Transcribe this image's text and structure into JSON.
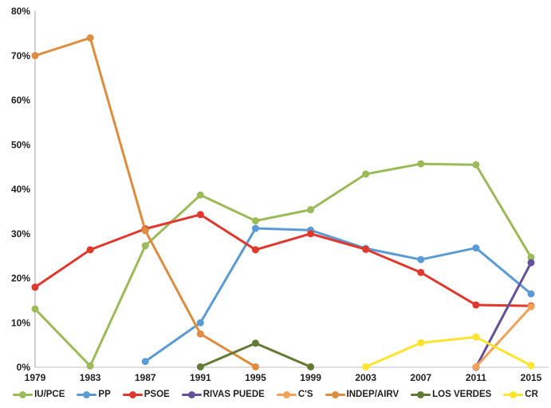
{
  "chart_data": {
    "type": "line",
    "title": "",
    "xlabel": "",
    "ylabel": "",
    "ylim": [
      0,
      80
    ],
    "grid": false,
    "legend_position": "bottom",
    "y_ticks": [
      "0%",
      "10%",
      "20%",
      "30%",
      "40%",
      "50%",
      "60%",
      "70%",
      "80%"
    ],
    "categories": [
      "1979",
      "1983",
      "1987",
      "1991",
      "1995",
      "1999",
      "2003",
      "2007",
      "2011",
      "2015"
    ],
    "series": [
      {
        "name": "IU/PCE",
        "color": "#9BBB59",
        "values": [
          13.1,
          0.3,
          27.3,
          38.7,
          32.9,
          35.4,
          43.4,
          45.7,
          45.5,
          24.7
        ]
      },
      {
        "name": "PP",
        "color": "#5B9BD5",
        "values": [
          null,
          null,
          1.3,
          10.0,
          31.2,
          30.8,
          26.7,
          24.2,
          26.8,
          16.5
        ]
      },
      {
        "name": "PSOE",
        "color": "#E0382D",
        "values": [
          18.0,
          26.4,
          31.1,
          34.3,
          26.4,
          30.0,
          26.5,
          21.3,
          14.0,
          13.8
        ]
      },
      {
        "name": "RIVAS PUEDE",
        "color": "#65519B",
        "values": [
          null,
          null,
          null,
          null,
          null,
          null,
          null,
          null,
          0.0,
          23.5
        ]
      },
      {
        "name": "C'S",
        "color": "#F2A158",
        "values": [
          null,
          null,
          null,
          null,
          null,
          null,
          null,
          null,
          0.1,
          13.6
        ]
      },
      {
        "name": "INDEP/AIRV",
        "color": "#DE8C3E",
        "values": [
          70.0,
          74.0,
          30.7,
          7.5,
          0.1,
          null,
          null,
          null,
          null,
          null
        ]
      },
      {
        "name": "LOS VERDES",
        "color": "#637A36",
        "values": [
          null,
          null,
          null,
          0.1,
          5.4,
          0.1,
          null,
          null,
          null,
          null
        ]
      },
      {
        "name": "CR",
        "color": "#FEE42E",
        "values": [
          null,
          null,
          null,
          null,
          null,
          null,
          0.1,
          5.5,
          6.8,
          0.4
        ]
      }
    ],
    "axis_color": "#A6A6A6",
    "baseline_color": "#BDBDBD"
  }
}
